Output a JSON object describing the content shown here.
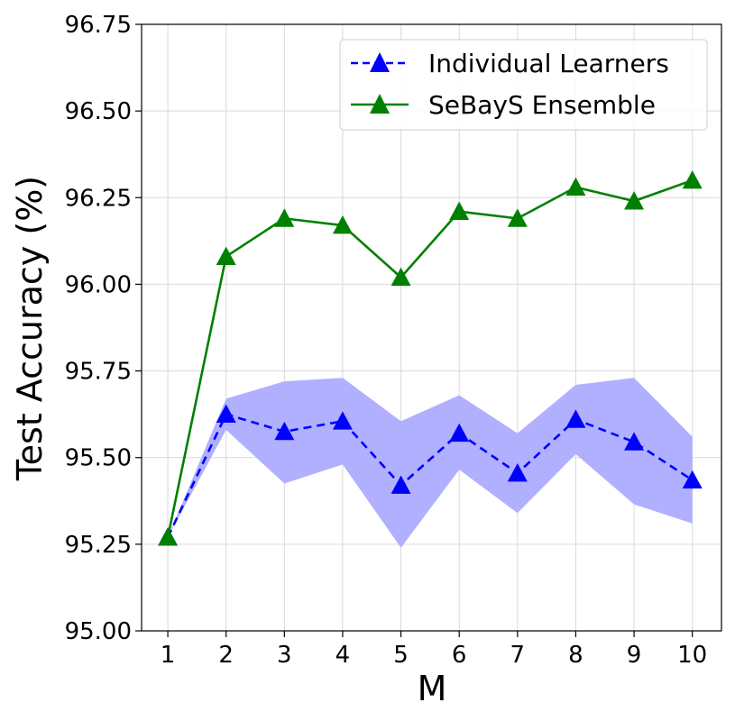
{
  "chart_data": {
    "type": "line",
    "title": "",
    "xlabel": "M",
    "ylabel": "Test Accuracy (%)",
    "x": [
      1,
      2,
      3,
      4,
      5,
      6,
      7,
      8,
      9,
      10
    ],
    "x_tick_labels": [
      "1",
      "2",
      "3",
      "4",
      "5",
      "6",
      "7",
      "8",
      "9",
      "10"
    ],
    "xlim": [
      0.55,
      10.5
    ],
    "ylim": [
      95.0,
      96.75
    ],
    "y_ticks": [
      95.0,
      95.25,
      95.5,
      95.75,
      96.0,
      96.25,
      96.5,
      96.75
    ],
    "y_tick_labels": [
      "95.00",
      "95.25",
      "95.50",
      "95.75",
      "96.00",
      "96.25",
      "96.50",
      "96.75"
    ],
    "grid": true,
    "legend_position": "top-right",
    "series": [
      {
        "name": "Individual Learners",
        "color": "#0000ff",
        "line_style": "dashed",
        "marker": "triangle",
        "values": [
          95.27,
          95.625,
          95.575,
          95.605,
          95.42,
          95.57,
          95.455,
          95.61,
          95.545,
          95.435
        ],
        "band_lower": [
          95.27,
          95.58,
          95.425,
          95.48,
          95.24,
          95.465,
          95.34,
          95.51,
          95.365,
          95.31
        ],
        "band_upper": [
          95.27,
          95.67,
          95.72,
          95.73,
          95.605,
          95.68,
          95.57,
          95.71,
          95.73,
          95.56
        ],
        "band_color": "#b0b0ff"
      },
      {
        "name": "SeBayS Ensemble",
        "color": "#008000",
        "line_style": "solid",
        "marker": "triangle",
        "values": [
          95.27,
          96.08,
          96.19,
          96.17,
          96.02,
          96.21,
          96.19,
          96.28,
          96.24,
          96.3
        ]
      }
    ]
  }
}
